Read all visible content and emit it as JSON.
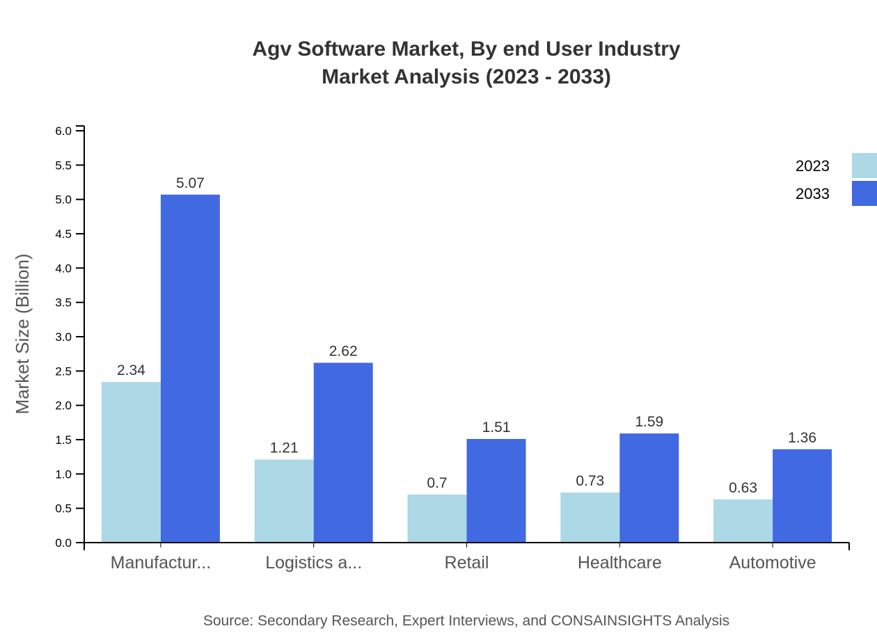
{
  "chart_data": {
    "type": "bar",
    "title": [
      "Agv Software Market, By end User Industry",
      "Market Analysis (2023 - 2033)"
    ],
    "xlabel": "",
    "ylabel": "Market Size (Billion)",
    "ylim": [
      0,
      6.07
    ],
    "yticks": [
      "0.0",
      "0.5",
      "1.0",
      "1.5",
      "2.0",
      "2.5",
      "3.0",
      "3.5",
      "4.0",
      "4.5",
      "5.0",
      "5.5",
      "6.0"
    ],
    "categories": [
      "Manufactur...",
      "Logistics a...",
      "Retail",
      "Healthcare",
      "Automotive"
    ],
    "series": [
      {
        "name": "2023",
        "color": "#ADD8E6",
        "values": [
          2.34,
          1.21,
          0.7,
          0.73,
          0.63
        ],
        "labels": [
          "2.34",
          "1.21",
          "0.7",
          "0.73",
          "0.63"
        ]
      },
      {
        "name": "2033",
        "color": "#4169E1",
        "values": [
          5.07,
          2.62,
          1.51,
          1.59,
          1.36
        ],
        "labels": [
          "5.07",
          "2.62",
          "1.51",
          "1.59",
          "1.36"
        ]
      }
    ],
    "grid": false,
    "legend_position": "top-right",
    "source": "Source: Secondary Research, Expert Interviews, and CONSAINSIGHTS Analysis"
  }
}
